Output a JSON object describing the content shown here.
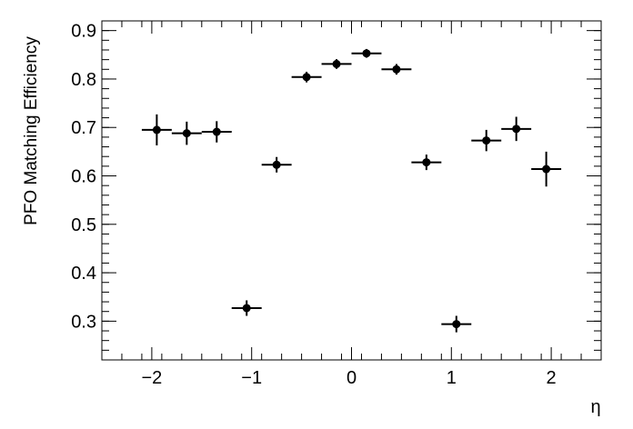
{
  "chart_data": {
    "type": "scatter",
    "title": "",
    "xlabel": "η",
    "ylabel": "PFO Matching Efficiency",
    "xlim": [
      -2.5,
      2.5
    ],
    "ylim": [
      0.22,
      0.92
    ],
    "x_ticks": [
      -2,
      -1,
      0,
      1,
      2
    ],
    "x_tick_labels": [
      "−2",
      "−1",
      "0",
      "1",
      "2"
    ],
    "y_ticks": [
      0.3,
      0.4,
      0.5,
      0.6,
      0.7,
      0.8,
      0.9
    ],
    "y_tick_labels": [
      "0.3",
      "0.4",
      "0.5",
      "0.6",
      "0.7",
      "0.8",
      "0.9"
    ],
    "grid": false,
    "series": [
      {
        "x_err": 0.15,
        "points": [
          {
            "x": -1.95,
            "y": 0.695,
            "yerr": 0.032
          },
          {
            "x": -1.65,
            "y": 0.688,
            "yerr": 0.024
          },
          {
            "x": -1.35,
            "y": 0.691,
            "yerr": 0.022
          },
          {
            "x": -1.05,
            "y": 0.327,
            "yerr": 0.016
          },
          {
            "x": -0.75,
            "y": 0.623,
            "yerr": 0.016
          },
          {
            "x": -0.45,
            "y": 0.804,
            "yerr": 0.011
          },
          {
            "x": -0.15,
            "y": 0.831,
            "yerr": 0.01
          },
          {
            "x": 0.15,
            "y": 0.853,
            "yerr": 0.009
          },
          {
            "x": 0.45,
            "y": 0.82,
            "yerr": 0.011
          },
          {
            "x": 0.75,
            "y": 0.628,
            "yerr": 0.016
          },
          {
            "x": 1.05,
            "y": 0.294,
            "yerr": 0.017
          },
          {
            "x": 1.35,
            "y": 0.673,
            "yerr": 0.022
          },
          {
            "x": 1.65,
            "y": 0.697,
            "yerr": 0.025
          },
          {
            "x": 1.95,
            "y": 0.614,
            "yerr": 0.036
          }
        ]
      }
    ]
  }
}
